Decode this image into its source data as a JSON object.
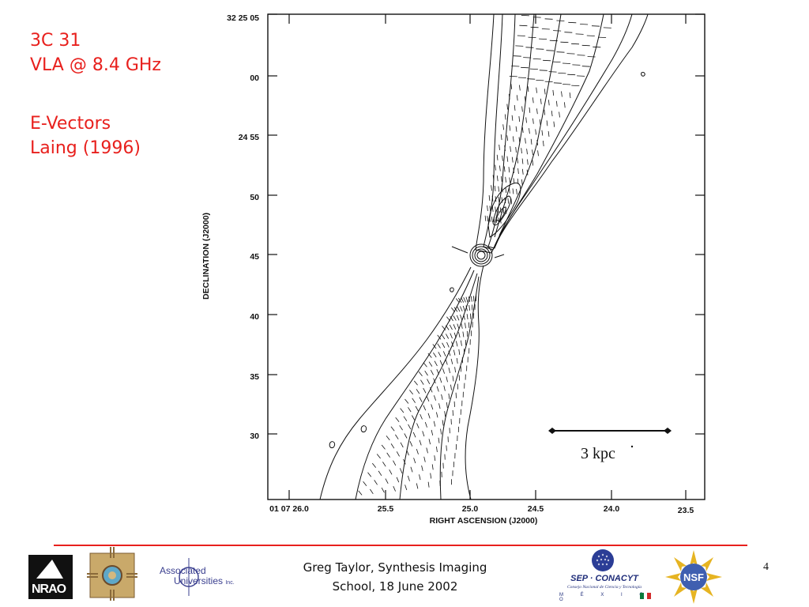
{
  "slide": {
    "title_lines": [
      "3C 31",
      "VLA @ 8.4 GHz"
    ],
    "subtitle_lines": [
      "E-Vectors",
      "Laing (1996)"
    ],
    "footer_text_lines": [
      "Greg Taylor, Synthesis Imaging",
      "School, 18 June 2002"
    ],
    "page_number": "4",
    "accent_color": "#e8201d"
  },
  "figure": {
    "y_axis_label": "DECLINATION (J2000)",
    "x_axis_label": "RIGHT ASCENSION (J2000)",
    "y_tick_labels": [
      "32 25 05",
      "00",
      "24 55",
      "50",
      "45",
      "40",
      "35",
      "30"
    ],
    "x_tick_labels": [
      "01 07 26.0",
      "25.5",
      "25.0",
      "24.5",
      "24.0",
      "23.5"
    ],
    "scale_bar_label": "3 kpc"
  },
  "logos": {
    "nrao": {
      "icon": "nrao-logo",
      "text": "NRAO"
    },
    "new_mexico": {
      "icon": "zia-sun-logo"
    },
    "associated_universities": {
      "icon": "associated-universities-logo",
      "line1": "Associated",
      "line2": "Universities",
      "suffix": "Inc."
    },
    "conacyt": {
      "icon": "sep-conacyt-logo",
      "title": "SEP · CONACYT",
      "subtitle": "Consejo Nacional de Ciencia y Tecnología",
      "country": "M É X I C O"
    },
    "nsf": {
      "icon": "nsf-logo",
      "text": "NSF"
    }
  }
}
